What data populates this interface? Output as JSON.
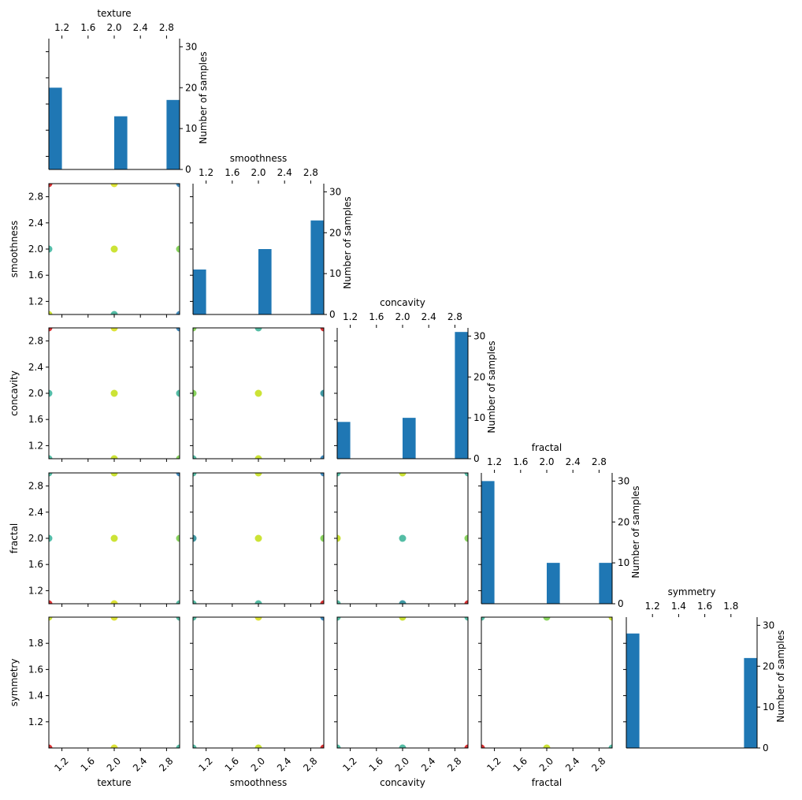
{
  "chart_data": {
    "type": "scatter-matrix",
    "variables": [
      "texture",
      "smoothness",
      "concavity",
      "fractal",
      "symmetry"
    ],
    "diagonal": {
      "type": "bar",
      "ylabel": "Number of samples",
      "ylim": [
        0,
        32
      ],
      "yticks": [
        "0",
        "10",
        "20",
        "30"
      ],
      "histograms": [
        {
          "variable": "texture",
          "bins": [
            {
              "x": 1,
              "value": 20
            },
            {
              "x": 2,
              "value": 13
            },
            {
              "x": 3,
              "value": 17
            }
          ]
        },
        {
          "variable": "smoothness",
          "bins": [
            {
              "x": 1,
              "value": 11
            },
            {
              "x": 2,
              "value": 16
            },
            {
              "x": 3,
              "value": 23
            }
          ]
        },
        {
          "variable": "concavity",
          "bins": [
            {
              "x": 1,
              "value": 9
            },
            {
              "x": 2,
              "value": 10
            },
            {
              "x": 3,
              "value": 31
            }
          ]
        },
        {
          "variable": "fractal",
          "bins": [
            {
              "x": 1,
              "value": 30
            },
            {
              "x": 2,
              "value": 10
            },
            {
              "x": 3,
              "value": 10
            }
          ]
        },
        {
          "variable": "symmetry",
          "bins": [
            {
              "x": 1,
              "value": 28
            },
            {
              "x": 2,
              "value": 22
            }
          ]
        }
      ]
    },
    "ranges": {
      "texture": [
        1,
        3
      ],
      "smoothness": [
        1,
        3
      ],
      "concavity": [
        1,
        3
      ],
      "fractal": [
        1,
        3
      ],
      "symmetry": [
        1,
        2
      ]
    },
    "ticks": {
      "texture": [
        "1.2",
        "1.6",
        "2.0",
        "2.4",
        "2.8"
      ],
      "smoothness": [
        "1.2",
        "1.6",
        "2.0",
        "2.4",
        "2.8"
      ],
      "concavity": [
        "1.2",
        "1.6",
        "2.0",
        "2.4",
        "2.8"
      ],
      "fractal": [
        "1.2",
        "1.6",
        "2.0",
        "2.4",
        "2.8"
      ],
      "symmetry": [
        "1.2",
        "1.4",
        "1.6",
        "1.8"
      ]
    },
    "scatter_points": [
      {
        "x": "texture",
        "y": "smoothness",
        "points": [
          [
            1,
            3,
            "#d7191c"
          ],
          [
            2,
            3,
            "#d9e021"
          ],
          [
            3,
            3,
            "#2c7fb8"
          ],
          [
            1,
            2,
            "#41b6a0"
          ],
          [
            2,
            2,
            "#c7e020"
          ],
          [
            3,
            2,
            "#7ccf4c"
          ],
          [
            1,
            1,
            "#c7e020"
          ],
          [
            2,
            1,
            "#41b69b"
          ],
          [
            3,
            1,
            "#2c7fb8"
          ]
        ]
      },
      {
        "x": "texture",
        "y": "concavity",
        "points": [
          [
            1,
            3,
            "#d7191c"
          ],
          [
            2,
            3,
            "#d9e021"
          ],
          [
            3,
            3,
            "#2c7fb8"
          ],
          [
            1,
            2,
            "#41b6a0"
          ],
          [
            2,
            2,
            "#c7e020"
          ],
          [
            3,
            2,
            "#41b69b"
          ],
          [
            1,
            1,
            "#41b69b"
          ],
          [
            2,
            1,
            "#c7e020"
          ],
          [
            3,
            1,
            "#7ccf4c"
          ]
        ]
      },
      {
        "x": "smoothness",
        "y": "concavity",
        "points": [
          [
            1,
            3,
            "#7ccf4c"
          ],
          [
            2,
            3,
            "#41b69b"
          ],
          [
            3,
            3,
            "#d7191c"
          ],
          [
            1,
            2,
            "#7ccf4c"
          ],
          [
            2,
            2,
            "#c7e020"
          ],
          [
            3,
            2,
            "#2c8f9b"
          ],
          [
            1,
            1,
            "#41b69b"
          ],
          [
            2,
            1,
            "#c7e020"
          ],
          [
            3,
            1,
            "#2c7fb8"
          ]
        ]
      },
      {
        "x": "texture",
        "y": "fractal",
        "points": [
          [
            1,
            3,
            "#41b69b"
          ],
          [
            2,
            3,
            "#c7e020"
          ],
          [
            3,
            3,
            "#2c7fb8"
          ],
          [
            1,
            2,
            "#41b6a0"
          ],
          [
            2,
            2,
            "#c7e020"
          ],
          [
            3,
            2,
            "#7ccf4c"
          ],
          [
            1,
            1,
            "#d7191c"
          ],
          [
            2,
            1,
            "#d9e021"
          ],
          [
            3,
            1,
            "#41b69b"
          ]
        ]
      },
      {
        "x": "smoothness",
        "y": "fractal",
        "points": [
          [
            1,
            3,
            "#41b69b"
          ],
          [
            2,
            3,
            "#c7e020"
          ],
          [
            3,
            3,
            "#2c7fb8"
          ],
          [
            1,
            2,
            "#2c8f9b"
          ],
          [
            2,
            2,
            "#c7e020"
          ],
          [
            3,
            2,
            "#7ccf4c"
          ],
          [
            1,
            1,
            "#41b69b"
          ],
          [
            2,
            1,
            "#41b69b"
          ],
          [
            3,
            1,
            "#d7191c"
          ]
        ]
      },
      {
        "x": "concavity",
        "y": "fractal",
        "points": [
          [
            1,
            3,
            "#41b69b"
          ],
          [
            2,
            3,
            "#c7e020"
          ],
          [
            3,
            3,
            "#41b69b"
          ],
          [
            1,
            2,
            "#c7e020"
          ],
          [
            2,
            2,
            "#41b69b"
          ],
          [
            3,
            2,
            "#7ccf4c"
          ],
          [
            1,
            1,
            "#41b69b"
          ],
          [
            2,
            1,
            "#2c8f9b"
          ],
          [
            3,
            1,
            "#d7191c"
          ]
        ]
      },
      {
        "x": "texture",
        "y": "symmetry",
        "points": [
          [
            1,
            2,
            "#c7e020"
          ],
          [
            2,
            2,
            "#d9e021"
          ],
          [
            3,
            2,
            "#41b69b"
          ],
          [
            1,
            1,
            "#d7191c"
          ],
          [
            2,
            1,
            "#d9e021"
          ],
          [
            3,
            1,
            "#41b69b"
          ]
        ]
      },
      {
        "x": "smoothness",
        "y": "symmetry",
        "points": [
          [
            1,
            2,
            "#41b69b"
          ],
          [
            2,
            2,
            "#d9e021"
          ],
          [
            3,
            2,
            "#2c7fb8"
          ],
          [
            1,
            1,
            "#41b69b"
          ],
          [
            2,
            1,
            "#c7e020"
          ],
          [
            3,
            1,
            "#d7191c"
          ]
        ]
      },
      {
        "x": "concavity",
        "y": "symmetry",
        "points": [
          [
            1,
            2,
            "#41b69b"
          ],
          [
            2,
            2,
            "#c7e020"
          ],
          [
            3,
            2,
            "#41b69b"
          ],
          [
            1,
            1,
            "#41b69b"
          ],
          [
            2,
            1,
            "#41b69b"
          ],
          [
            3,
            1,
            "#d7191c"
          ]
        ]
      },
      {
        "x": "fractal",
        "y": "symmetry",
        "points": [
          [
            1,
            2,
            "#41b69b"
          ],
          [
            2,
            2,
            "#7ccf4c"
          ],
          [
            3,
            2,
            "#c7e020"
          ],
          [
            1,
            1,
            "#d7191c"
          ],
          [
            2,
            1,
            "#c7e020"
          ],
          [
            3,
            1,
            "#41b69b"
          ]
        ]
      }
    ],
    "bar_color": "#1f77b4",
    "grid": false
  }
}
